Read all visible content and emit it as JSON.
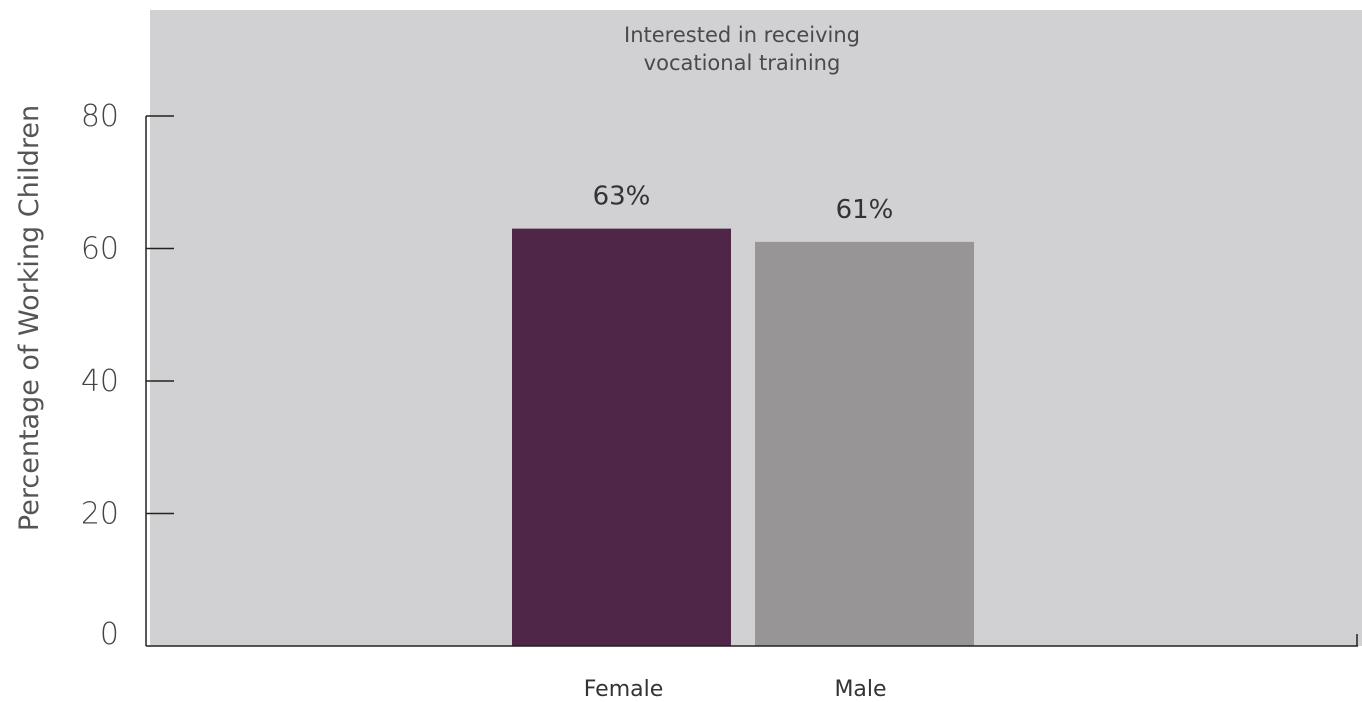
{
  "chart_data": {
    "type": "bar",
    "title_lines": [
      "Interested in receiving",
      "vocational training"
    ],
    "ylabel": "Percentage of Working Children",
    "xlabel": "",
    "categories": [
      "Female",
      "Male"
    ],
    "values": [
      63,
      61
    ],
    "value_labels": [
      "63%",
      "61%"
    ],
    "ylim": [
      0,
      80
    ],
    "yticks": [
      "0",
      "20",
      "40",
      "60",
      "80"
    ],
    "ytick_values": [
      0,
      20,
      40,
      60,
      80
    ],
    "colors": [
      "#4f2548",
      "#979596"
    ],
    "plot_background": "#d1d1d3",
    "grid": false,
    "legend": false
  }
}
